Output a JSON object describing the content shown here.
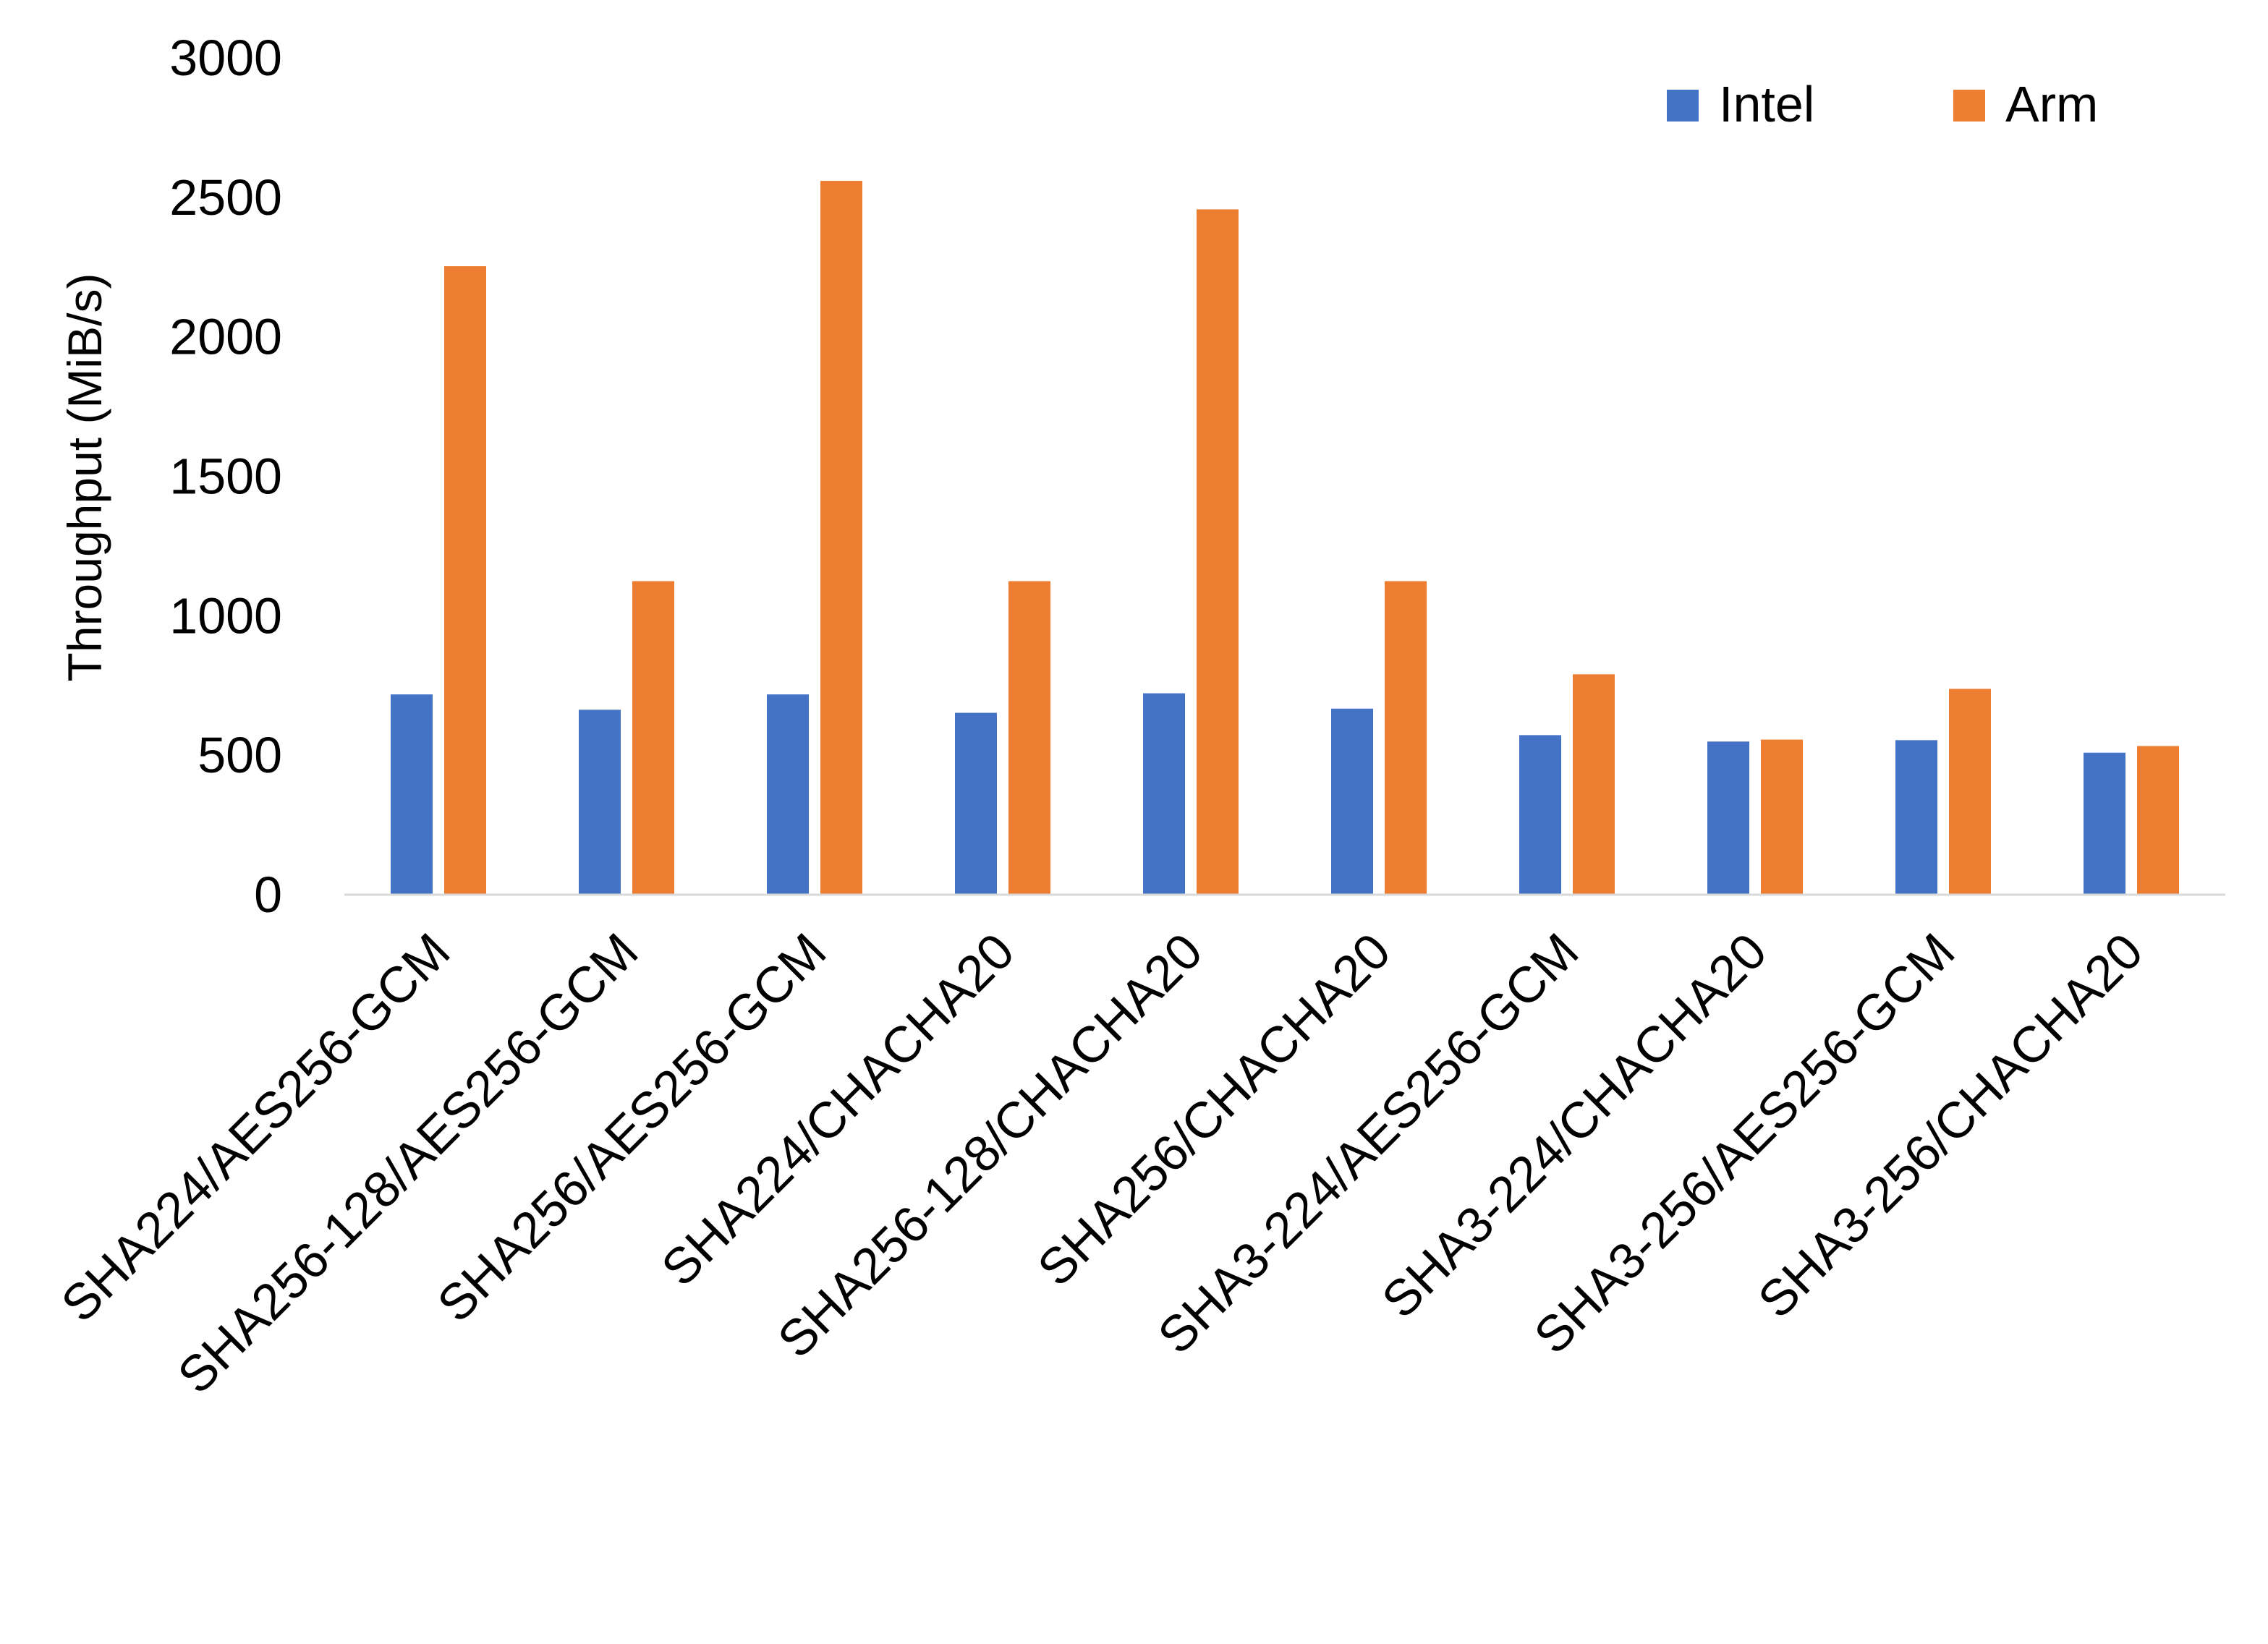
{
  "chart_data": {
    "type": "bar",
    "title": "",
    "xlabel": "",
    "ylabel": "Throughput (MiB/s)",
    "ylim": [
      0,
      3000
    ],
    "yticks": [
      "0",
      "500",
      "1000",
      "1500",
      "2000",
      "2500",
      "3000"
    ],
    "grid": false,
    "legend_position": "top-right",
    "categories": [
      "SHA224/AES256-GCM",
      "SHA256-128/AES256-GCM",
      "SHA256/AES256-GCM",
      "SHA224/CHACHA20",
      "SHA256-128/CHACHA20",
      "SHA256/CHACHA20",
      "SHA3-224/AES256-GCM",
      "SHA3-224/CHACHA20",
      "SHA3-256/AES256-GCM",
      "SHA3-256/CHACHA20"
    ],
    "series": [
      {
        "name": "Intel",
        "color": "#4472C4",
        "values": [
          718,
          663,
          718,
          652,
          722,
          667,
          572,
          549,
          554,
          509
        ]
      },
      {
        "name": "Arm",
        "color": "#ED7D31",
        "values": [
          2253,
          1124,
          2559,
          1124,
          2457,
          1124,
          790,
          556,
          738,
          533
        ]
      }
    ]
  }
}
